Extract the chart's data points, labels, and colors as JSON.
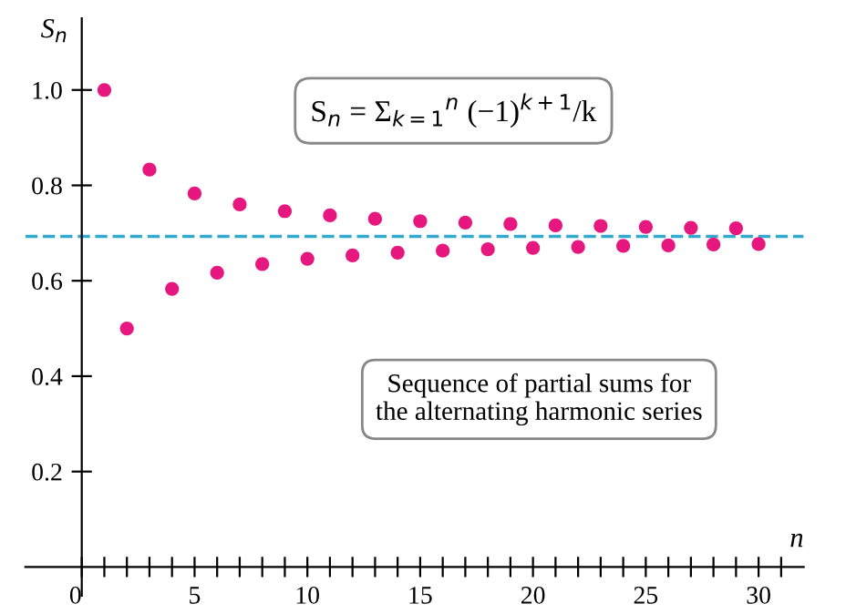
{
  "chart_data": {
    "type": "scatter",
    "x": [
      1,
      2,
      3,
      4,
      5,
      6,
      7,
      8,
      9,
      10,
      11,
      12,
      13,
      14,
      15,
      16,
      17,
      18,
      19,
      20,
      21,
      22,
      23,
      24,
      25,
      26,
      27,
      28,
      29,
      30
    ],
    "series": [
      {
        "color": "#e6187f",
        "values": [
          1.0,
          0.5,
          0.833,
          0.583,
          0.783,
          0.617,
          0.76,
          0.635,
          0.746,
          0.646,
          0.737,
          0.653,
          0.73,
          0.659,
          0.725,
          0.663,
          0.722,
          0.666,
          0.719,
          0.669,
          0.716,
          0.671,
          0.715,
          0.673,
          0.713,
          0.674,
          0.711,
          0.676,
          0.71,
          0.677
        ]
      }
    ],
    "marker": "circle",
    "xlabel": "n",
    "ylabel": "S$_{n}$",
    "xlim": [
      -2.5,
      32
    ],
    "ylim": [
      -0.06,
      1.15
    ],
    "xticks": [
      {
        "value": 0,
        "label": "0"
      },
      {
        "value": 1,
        "label": null
      },
      {
        "value": 2,
        "label": null
      },
      {
        "value": 3,
        "label": null
      },
      {
        "value": 4,
        "label": null
      },
      5,
      {
        "value": 6,
        "label": null
      },
      {
        "value": 7,
        "label": null
      },
      {
        "value": 8,
        "label": null
      },
      {
        "value": 9,
        "label": null
      },
      10,
      {
        "value": 11,
        "label": null
      },
      {
        "value": 12,
        "label": null
      },
      {
        "value": 13,
        "label": null
      },
      {
        "value": 14,
        "label": null
      },
      15,
      {
        "value": 16,
        "label": null
      },
      {
        "value": 17,
        "label": null
      },
      {
        "value": 18,
        "label": null
      },
      {
        "value": 19,
        "label": null
      },
      20,
      {
        "value": 21,
        "label": null
      },
      {
        "value": 22,
        "label": null
      },
      {
        "value": 23,
        "label": null
      },
      {
        "value": 24,
        "label": null
      },
      25,
      {
        "value": 26,
        "label": null
      },
      {
        "value": 27,
        "label": null
      },
      {
        "value": 28,
        "label": null
      },
      {
        "value": 29,
        "label": null
      },
      30,
      {
        "value": 31,
        "label": null
      }
    ],
    "yticks": [
      {
        "value": 0.2,
        "label": "0.2"
      },
      {
        "value": 0.4,
        "label": "0.4"
      },
      {
        "value": 0.6,
        "label": "0.6"
      },
      {
        "value": 0.8,
        "label": "0.8"
      },
      {
        "value": 1,
        "label": "1.0"
      }
    ],
    "ref_lines": [
      {
        "axis": "y",
        "value": 0.693,
        "color": "#33aacc",
        "line_style": "dashed"
      }
    ],
    "grid": false,
    "annotations": [
      "S$_{n}$ = Σ$_{k=1}$$^{n}$ (−1)$^{k+1}$/k",
      "Sequence of partial sums for\nthe alternating harmonic series"
    ]
  }
}
